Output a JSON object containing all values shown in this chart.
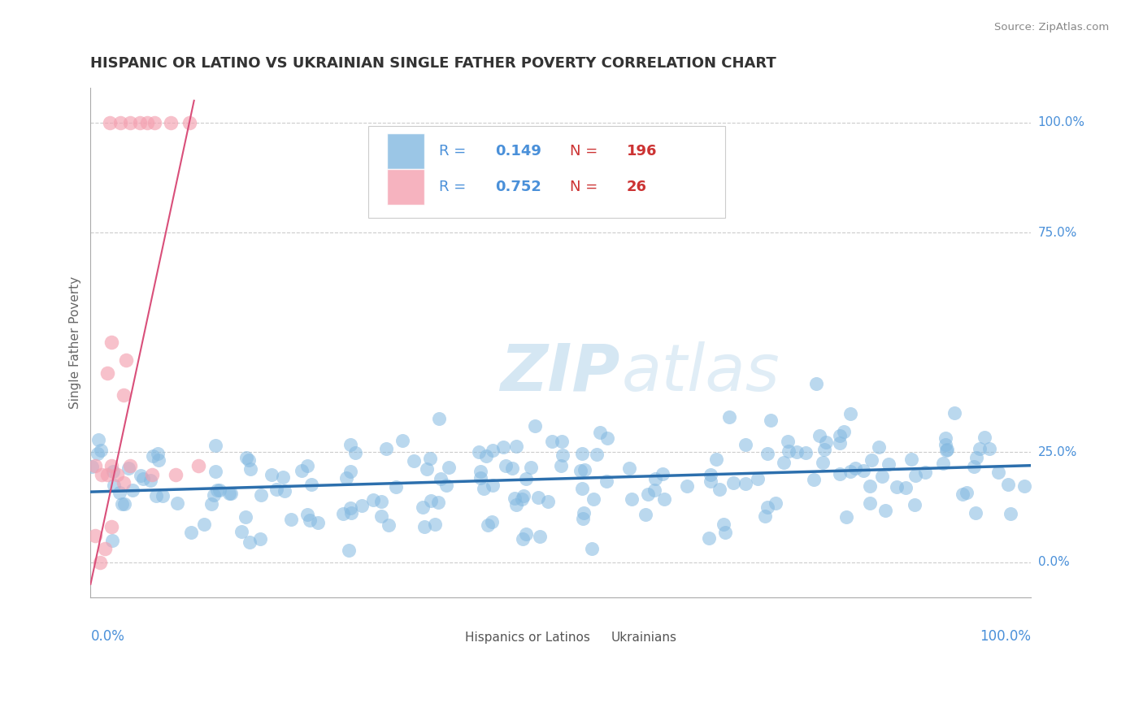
{
  "title": "HISPANIC OR LATINO VS UKRAINIAN SINGLE FATHER POVERTY CORRELATION CHART",
  "source": "Source: ZipAtlas.com",
  "ylabel": "Single Father Poverty",
  "r_hispanic": 0.149,
  "n_hispanic": 196,
  "r_ukrainian": 0.752,
  "n_ukrainian": 26,
  "blue_scatter_color": "#82b8e0",
  "pink_scatter_color": "#f4a0b0",
  "blue_line_color": "#2c6fad",
  "pink_line_color": "#d94f7a",
  "axis_label_color": "#4a90d9",
  "red_text_color": "#cc3333",
  "title_color": "#333333",
  "source_color": "#888888",
  "grid_color": "#cccccc",
  "background_color": "#ffffff",
  "watermark_color": "#c8dff0",
  "legend_border_color": "#dddddd",
  "bottom_legend_labels": [
    "Hispanics or Latinos",
    "Ukrainians"
  ],
  "ytick_positions": [
    0.0,
    0.25,
    0.75,
    1.0
  ],
  "ytick_labels": [
    "0.0%",
    "25.0%",
    "75.0%",
    "100.0%"
  ],
  "xlim": [
    0,
    1
  ],
  "ylim": [
    -0.08,
    1.08
  ]
}
